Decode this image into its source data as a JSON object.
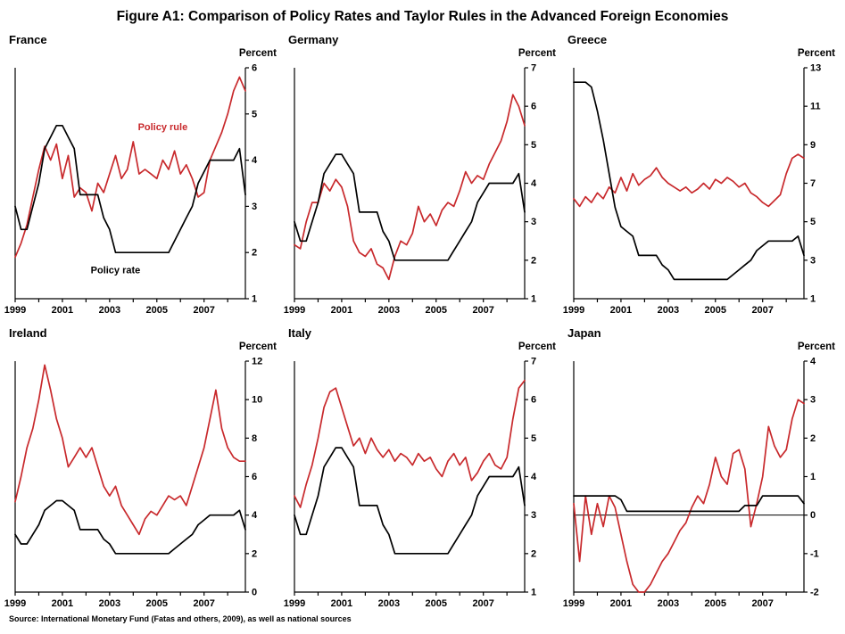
{
  "figure_title": "Figure A1: Comparison of Policy Rates and Taylor Rules in the Advanced Foreign Economies",
  "source": "Source: International Monetary Fund (Fatas and others, 2009), as well as national sources",
  "colors": {
    "policy_rule": "#c8292c",
    "policy_rate": "#000000"
  },
  "chart_data": [
    {
      "type": "line",
      "title": "France",
      "unit_label": "Percent",
      "x_start": 1999,
      "x_frequency": "quarterly",
      "xtick_labels": [
        1999,
        2001,
        2003,
        2005,
        2007
      ],
      "ylim": [
        1,
        6
      ],
      "yticks": [
        1,
        2,
        3,
        4,
        5,
        6
      ],
      "zero_line": false,
      "legend_position": "in-chart-annotations",
      "series": [
        {
          "name": "Policy rule",
          "color": "#c8292c",
          "values": [
            1.9,
            2.2,
            2.6,
            3.2,
            3.8,
            4.3,
            4.0,
            4.35,
            3.6,
            4.1,
            3.2,
            3.4,
            3.3,
            2.9,
            3.5,
            3.3,
            3.7,
            4.1,
            3.6,
            3.8,
            4.4,
            3.7,
            3.8,
            3.7,
            3.6,
            4.0,
            3.8,
            4.2,
            3.7,
            3.9,
            3.6,
            3.2,
            3.3,
            4.0,
            4.3,
            4.6,
            5.0,
            5.5,
            5.8,
            5.5
          ]
        },
        {
          "name": "Policy rate",
          "color": "#000000",
          "values": [
            3.0,
            2.5,
            2.5,
            3.0,
            3.5,
            4.25,
            4.5,
            4.75,
            4.75,
            4.5,
            4.25,
            3.25,
            3.25,
            3.25,
            3.25,
            2.75,
            2.5,
            2.0,
            2.0,
            2.0,
            2.0,
            2.0,
            2.0,
            2.0,
            2.0,
            2.0,
            2.0,
            2.25,
            2.5,
            2.75,
            3.0,
            3.5,
            3.75,
            4.0,
            4.0,
            4.0,
            4.0,
            4.0,
            4.25,
            3.25
          ]
        }
      ],
      "annotations": [
        {
          "text": "Policy rule",
          "color": "#c8292c",
          "x_index": 25,
          "y_value": 4.65
        },
        {
          "text": "Policy rate",
          "color": "#000000",
          "x_index": 17,
          "y_value": 1.55
        }
      ]
    },
    {
      "type": "line",
      "title": "Germany",
      "unit_label": "Percent",
      "x_start": 1999,
      "x_frequency": "quarterly",
      "xtick_labels": [
        1999,
        2001,
        2003,
        2005,
        2007
      ],
      "ylim": [
        1,
        7
      ],
      "yticks": [
        1,
        2,
        3,
        4,
        5,
        6,
        7
      ],
      "zero_line": false,
      "series": [
        {
          "name": "Policy rule",
          "color": "#c8292c",
          "values": [
            2.4,
            2.3,
            3.0,
            3.5,
            3.5,
            4.0,
            3.8,
            4.1,
            3.9,
            3.4,
            2.5,
            2.2,
            2.1,
            2.3,
            1.9,
            1.8,
            1.5,
            2.1,
            2.5,
            2.4,
            2.7,
            3.4,
            3.0,
            3.2,
            2.9,
            3.3,
            3.5,
            3.4,
            3.8,
            4.3,
            4.0,
            4.2,
            4.1,
            4.5,
            4.8,
            5.1,
            5.6,
            6.3,
            6.0,
            5.5
          ]
        },
        {
          "name": "Policy rate",
          "color": "#000000",
          "values": [
            3.0,
            2.5,
            2.5,
            3.0,
            3.5,
            4.25,
            4.5,
            4.75,
            4.75,
            4.5,
            4.25,
            3.25,
            3.25,
            3.25,
            3.25,
            2.75,
            2.5,
            2.0,
            2.0,
            2.0,
            2.0,
            2.0,
            2.0,
            2.0,
            2.0,
            2.0,
            2.0,
            2.25,
            2.5,
            2.75,
            3.0,
            3.5,
            3.75,
            4.0,
            4.0,
            4.0,
            4.0,
            4.0,
            4.25,
            3.25
          ]
        }
      ],
      "annotations": []
    },
    {
      "type": "line",
      "title": "Greece",
      "unit_label": "Percent",
      "x_start": 1999,
      "x_frequency": "quarterly",
      "xtick_labels": [
        1999,
        2001,
        2003,
        2005,
        2007
      ],
      "ylim": [
        1,
        13
      ],
      "yticks": [
        1,
        3,
        5,
        7,
        9,
        11,
        13
      ],
      "zero_line": false,
      "series": [
        {
          "name": "Policy rule",
          "color": "#c8292c",
          "values": [
            6.2,
            5.8,
            6.3,
            6.0,
            6.5,
            6.2,
            6.8,
            6.5,
            7.3,
            6.6,
            7.5,
            6.9,
            7.2,
            7.4,
            7.8,
            7.3,
            7.0,
            6.8,
            6.6,
            6.8,
            6.5,
            6.7,
            7.0,
            6.7,
            7.2,
            7.0,
            7.3,
            7.1,
            6.8,
            7.0,
            6.5,
            6.3,
            6.0,
            5.8,
            6.1,
            6.4,
            7.5,
            8.3,
            8.5,
            8.3
          ]
        },
        {
          "name": "Policy rate",
          "color": "#000000",
          "values": [
            12.25,
            12.25,
            12.25,
            12.0,
            10.75,
            9.25,
            7.5,
            5.75,
            4.75,
            4.5,
            4.25,
            3.25,
            3.25,
            3.25,
            3.25,
            2.75,
            2.5,
            2.0,
            2.0,
            2.0,
            2.0,
            2.0,
            2.0,
            2.0,
            2.0,
            2.0,
            2.0,
            2.25,
            2.5,
            2.75,
            3.0,
            3.5,
            3.75,
            4.0,
            4.0,
            4.0,
            4.0,
            4.0,
            4.25,
            3.25
          ]
        }
      ],
      "annotations": []
    },
    {
      "type": "line",
      "title": "Ireland",
      "unit_label": "Percent",
      "x_start": 1999,
      "x_frequency": "quarterly",
      "xtick_labels": [
        1999,
        2001,
        2003,
        2005,
        2007
      ],
      "ylim": [
        0,
        12
      ],
      "yticks": [
        0,
        2,
        4,
        6,
        8,
        10,
        12
      ],
      "zero_line": false,
      "series": [
        {
          "name": "Policy rule",
          "color": "#c8292c",
          "values": [
            4.7,
            6.0,
            7.5,
            8.5,
            10.0,
            11.8,
            10.5,
            9.0,
            8.0,
            6.5,
            7.0,
            7.5,
            7.0,
            7.5,
            6.5,
            5.5,
            5.0,
            5.5,
            4.5,
            4.0,
            3.5,
            3.0,
            3.8,
            4.2,
            4.0,
            4.5,
            5.0,
            4.8,
            5.0,
            4.5,
            5.5,
            6.5,
            7.5,
            9.0,
            10.5,
            8.5,
            7.5,
            7.0,
            6.8,
            6.8
          ]
        },
        {
          "name": "Policy rate",
          "color": "#000000",
          "values": [
            3.0,
            2.5,
            2.5,
            3.0,
            3.5,
            4.25,
            4.5,
            4.75,
            4.75,
            4.5,
            4.25,
            3.25,
            3.25,
            3.25,
            3.25,
            2.75,
            2.5,
            2.0,
            2.0,
            2.0,
            2.0,
            2.0,
            2.0,
            2.0,
            2.0,
            2.0,
            2.0,
            2.25,
            2.5,
            2.75,
            3.0,
            3.5,
            3.75,
            4.0,
            4.0,
            4.0,
            4.0,
            4.0,
            4.25,
            3.25
          ]
        }
      ],
      "annotations": []
    },
    {
      "type": "line",
      "title": "Italy",
      "unit_label": "Percent",
      "x_start": 1999,
      "x_frequency": "quarterly",
      "xtick_labels": [
        1999,
        2001,
        2003,
        2005,
        2007
      ],
      "ylim": [
        1,
        7
      ],
      "yticks": [
        1,
        2,
        3,
        4,
        5,
        6,
        7
      ],
      "zero_line": false,
      "series": [
        {
          "name": "Policy rule",
          "color": "#c8292c",
          "values": [
            3.5,
            3.2,
            3.8,
            4.3,
            5.0,
            5.8,
            6.2,
            6.3,
            5.8,
            5.3,
            4.8,
            5.0,
            4.6,
            5.0,
            4.7,
            4.5,
            4.7,
            4.4,
            4.6,
            4.5,
            4.3,
            4.6,
            4.4,
            4.5,
            4.2,
            4.0,
            4.4,
            4.6,
            4.3,
            4.5,
            3.9,
            4.1,
            4.4,
            4.6,
            4.3,
            4.2,
            4.5,
            5.5,
            6.3,
            6.5
          ]
        },
        {
          "name": "Policy rate",
          "color": "#000000",
          "values": [
            3.0,
            2.5,
            2.5,
            3.0,
            3.5,
            4.25,
            4.5,
            4.75,
            4.75,
            4.5,
            4.25,
            3.25,
            3.25,
            3.25,
            3.25,
            2.75,
            2.5,
            2.0,
            2.0,
            2.0,
            2.0,
            2.0,
            2.0,
            2.0,
            2.0,
            2.0,
            2.0,
            2.25,
            2.5,
            2.75,
            3.0,
            3.5,
            3.75,
            4.0,
            4.0,
            4.0,
            4.0,
            4.0,
            4.25,
            3.25
          ]
        }
      ],
      "annotations": []
    },
    {
      "type": "line",
      "title": "Japan",
      "unit_label": "Percent",
      "x_start": 1999,
      "x_frequency": "quarterly",
      "xtick_labels": [
        1999,
        2001,
        2003,
        2005,
        2007
      ],
      "ylim": [
        -2,
        4
      ],
      "yticks": [
        -2,
        -1,
        0,
        1,
        2,
        3,
        4
      ],
      "zero_line": true,
      "series": [
        {
          "name": "Policy rule",
          "color": "#c8292c",
          "values": [
            0.3,
            -1.2,
            0.5,
            -0.5,
            0.3,
            -0.3,
            0.5,
            0.2,
            -0.5,
            -1.2,
            -1.8,
            -2.0,
            -2.0,
            -1.8,
            -1.5,
            -1.2,
            -1.0,
            -0.7,
            -0.4,
            -0.2,
            0.2,
            0.5,
            0.3,
            0.8,
            1.5,
            1.0,
            0.8,
            1.6,
            1.7,
            1.2,
            -0.3,
            0.3,
            1.0,
            2.3,
            1.8,
            1.5,
            1.7,
            2.5,
            3.0,
            2.9
          ]
        },
        {
          "name": "Policy rate",
          "color": "#000000",
          "values": [
            0.5,
            0.5,
            0.5,
            0.5,
            0.5,
            0.5,
            0.5,
            0.5,
            0.4,
            0.1,
            0.1,
            0.1,
            0.1,
            0.1,
            0.1,
            0.1,
            0.1,
            0.1,
            0.1,
            0.1,
            0.1,
            0.1,
            0.1,
            0.1,
            0.1,
            0.1,
            0.1,
            0.1,
            0.1,
            0.25,
            0.25,
            0.25,
            0.5,
            0.5,
            0.5,
            0.5,
            0.5,
            0.5,
            0.5,
            0.3
          ]
        }
      ],
      "annotations": []
    }
  ]
}
